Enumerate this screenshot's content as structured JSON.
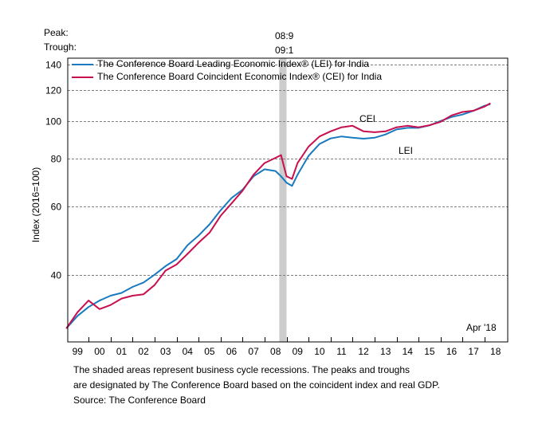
{
  "chart_data": {
    "type": "line",
    "title": "",
    "ylabel": "Index (2016=100)",
    "xlabel": "",
    "y_scale": "log",
    "ylim": [
      26.8,
      145.4
    ],
    "xlim": [
      1999.0,
      2019.0
    ],
    "y_ticks": [
      40,
      60,
      80,
      100,
      120,
      140
    ],
    "y_tick_labels": [
      "40",
      "60",
      "80",
      "100",
      "120",
      "140"
    ],
    "x_tick_labels": [
      "99",
      "00",
      "01",
      "02",
      "03",
      "04",
      "05",
      "06",
      "07",
      "08",
      "09",
      "10",
      "11",
      "12",
      "13",
      "14",
      "15",
      "16",
      "17",
      "18"
    ],
    "grid": "horizontal-dashed",
    "legend_position": "top-left",
    "annotations": {
      "peak_label": "Peak:",
      "trough_label": "Trough:",
      "peak_value": "08:9",
      "trough_value": "09:1",
      "last_date": "Apr '18",
      "cei_tag": "CEI",
      "lei_tag": "LEI"
    },
    "recessions": [
      {
        "start": 2008.67,
        "end": 2009.0
      }
    ],
    "x": [
      1999.0,
      1999.5,
      2000.0,
      2000.5,
      2001.0,
      2001.5,
      2002.0,
      2002.5,
      2003.0,
      2003.5,
      2004.0,
      2004.5,
      2005.0,
      2005.5,
      2006.0,
      2006.5,
      2007.0,
      2007.5,
      2008.0,
      2008.5,
      2008.75,
      2009.0,
      2009.25,
      2009.5,
      2010.0,
      2010.5,
      2011.0,
      2011.5,
      2012.0,
      2012.5,
      2013.0,
      2013.5,
      2014.0,
      2014.5,
      2015.0,
      2015.5,
      2016.0,
      2016.5,
      2017.0,
      2017.5,
      2018.0,
      2018.25
    ],
    "series": [
      {
        "name": "The Conference Board Leading Economic Index® (LEI) for India",
        "short": "LEI",
        "color": "#1a7abf",
        "values": [
          29.1,
          31.3,
          33.0,
          34.3,
          35.3,
          35.9,
          37.2,
          38.2,
          40.0,
          42.1,
          43.9,
          47.7,
          50.5,
          54.0,
          58.7,
          63.2,
          66.4,
          71.9,
          75.0,
          74.2,
          71.9,
          69.2,
          67.9,
          72.6,
          81.2,
          87.2,
          90.1,
          91.2,
          90.5,
          90.0,
          90.5,
          92.3,
          95.1,
          96.0,
          96.0,
          97.4,
          100.0,
          102.4,
          103.9,
          106.3,
          109.5,
          110.5
        ]
      },
      {
        "name": "The Conference Board Coincident Economic Index® (CEI) for India",
        "short": "CEI",
        "color": "#c8104e",
        "values": [
          29.1,
          32.0,
          34.3,
          32.6,
          33.4,
          34.7,
          35.3,
          35.6,
          37.6,
          41.0,
          42.5,
          45.3,
          48.4,
          51.4,
          56.8,
          61.2,
          66.0,
          72.6,
          77.8,
          80.3,
          81.6,
          71.9,
          70.8,
          77.8,
          85.8,
          91.2,
          94.0,
          96.3,
          97.2,
          94.0,
          93.5,
          94.0,
          96.3,
          97.2,
          96.3,
          97.5,
          99.5,
          103.4,
          105.5,
          106.3,
          109.0,
          111.0
        ]
      }
    ],
    "footnote": [
      "The shaded areas represent business cycle recessions. The peaks and troughs",
      "are designated by The Conference Board based on the coincident index and real GDP.",
      "Source: The Conference Board"
    ]
  }
}
